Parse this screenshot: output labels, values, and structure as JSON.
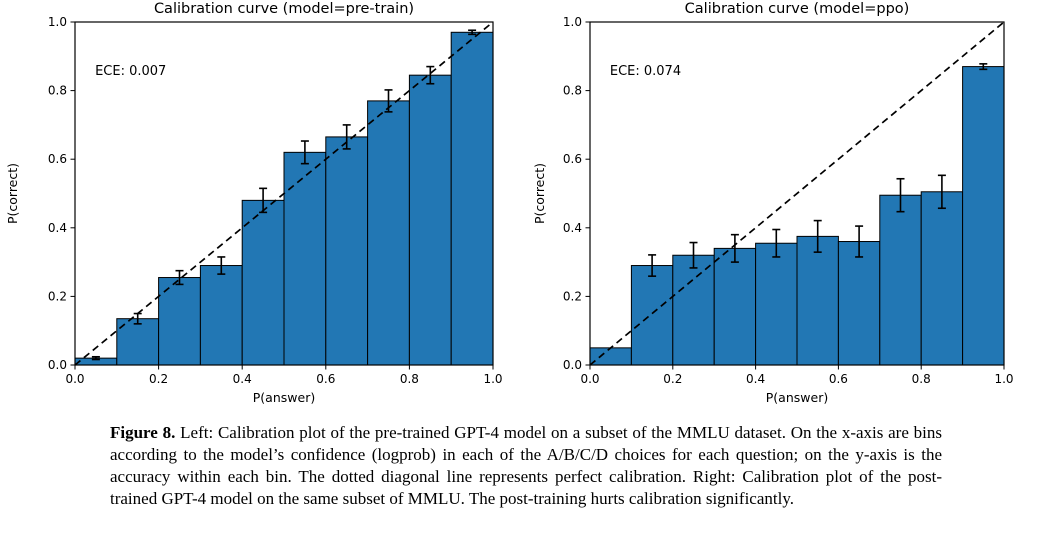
{
  "page": {
    "background": "#ffffff",
    "text_color": "#000000"
  },
  "caption": {
    "label": "Figure 8.",
    "text": "Left: Calibration plot of the pre-trained GPT-4 model on a subset of the MMLU dataset. On the x-axis are bins according to the model’s confidence (logprob) in each of the A/B/C/D choices for each question; on the y-axis is the accuracy within each bin. The dotted diagonal line represents perfect calibration. Right: Calibration plot of the post-trained GPT-4 model on the same subset of MMLU. The post-training hurts calibration significantly."
  },
  "chart_data": [
    {
      "type": "bar",
      "title": "Calibration curve (model=pre-train)",
      "annotation": "ECE: 0.007",
      "xlabel": "P(answer)",
      "ylabel": "P(correct)",
      "xlim": [
        0.0,
        1.0
      ],
      "ylim": [
        0.0,
        1.0
      ],
      "xticks": [
        0.0,
        0.2,
        0.4,
        0.6,
        0.8,
        1.0
      ],
      "yticks": [
        0.0,
        0.2,
        0.4,
        0.6,
        0.8,
        1.0
      ],
      "grid": false,
      "diagonal_line": true,
      "bin_width": 0.1,
      "bin_centers": [
        0.05,
        0.15,
        0.25,
        0.35,
        0.45,
        0.55,
        0.65,
        0.75,
        0.85,
        0.95
      ],
      "values": [
        0.02,
        0.135,
        0.255,
        0.29,
        0.48,
        0.62,
        0.665,
        0.77,
        0.845,
        0.97
      ],
      "errors": [
        0.004,
        0.015,
        0.02,
        0.025,
        0.035,
        0.033,
        0.035,
        0.032,
        0.025,
        0.006
      ],
      "bar_color": "#2277b4",
      "bar_edge_color": "#000000",
      "line_color": "#000000"
    },
    {
      "type": "bar",
      "title": "Calibration curve (model=ppo)",
      "annotation": "ECE: 0.074",
      "xlabel": "P(answer)",
      "ylabel": "P(correct)",
      "xlim": [
        0.0,
        1.0
      ],
      "ylim": [
        0.0,
        1.0
      ],
      "xticks": [
        0.0,
        0.2,
        0.4,
        0.6,
        0.8,
        1.0
      ],
      "yticks": [
        0.0,
        0.2,
        0.4,
        0.6,
        0.8,
        1.0
      ],
      "grid": false,
      "diagonal_line": true,
      "bin_width": 0.1,
      "bin_centers": [
        0.05,
        0.15,
        0.25,
        0.35,
        0.45,
        0.55,
        0.65,
        0.75,
        0.85,
        0.95
      ],
      "values": [
        0.05,
        0.29,
        0.32,
        0.34,
        0.355,
        0.375,
        0.36,
        0.495,
        0.505,
        0.87
      ],
      "errors": [
        0,
        0.031,
        0.037,
        0.04,
        0.04,
        0.046,
        0.045,
        0.048,
        0.048,
        0.008
      ],
      "bar_color": "#2277b4",
      "bar_edge_color": "#000000",
      "line_color": "#000000"
    }
  ]
}
